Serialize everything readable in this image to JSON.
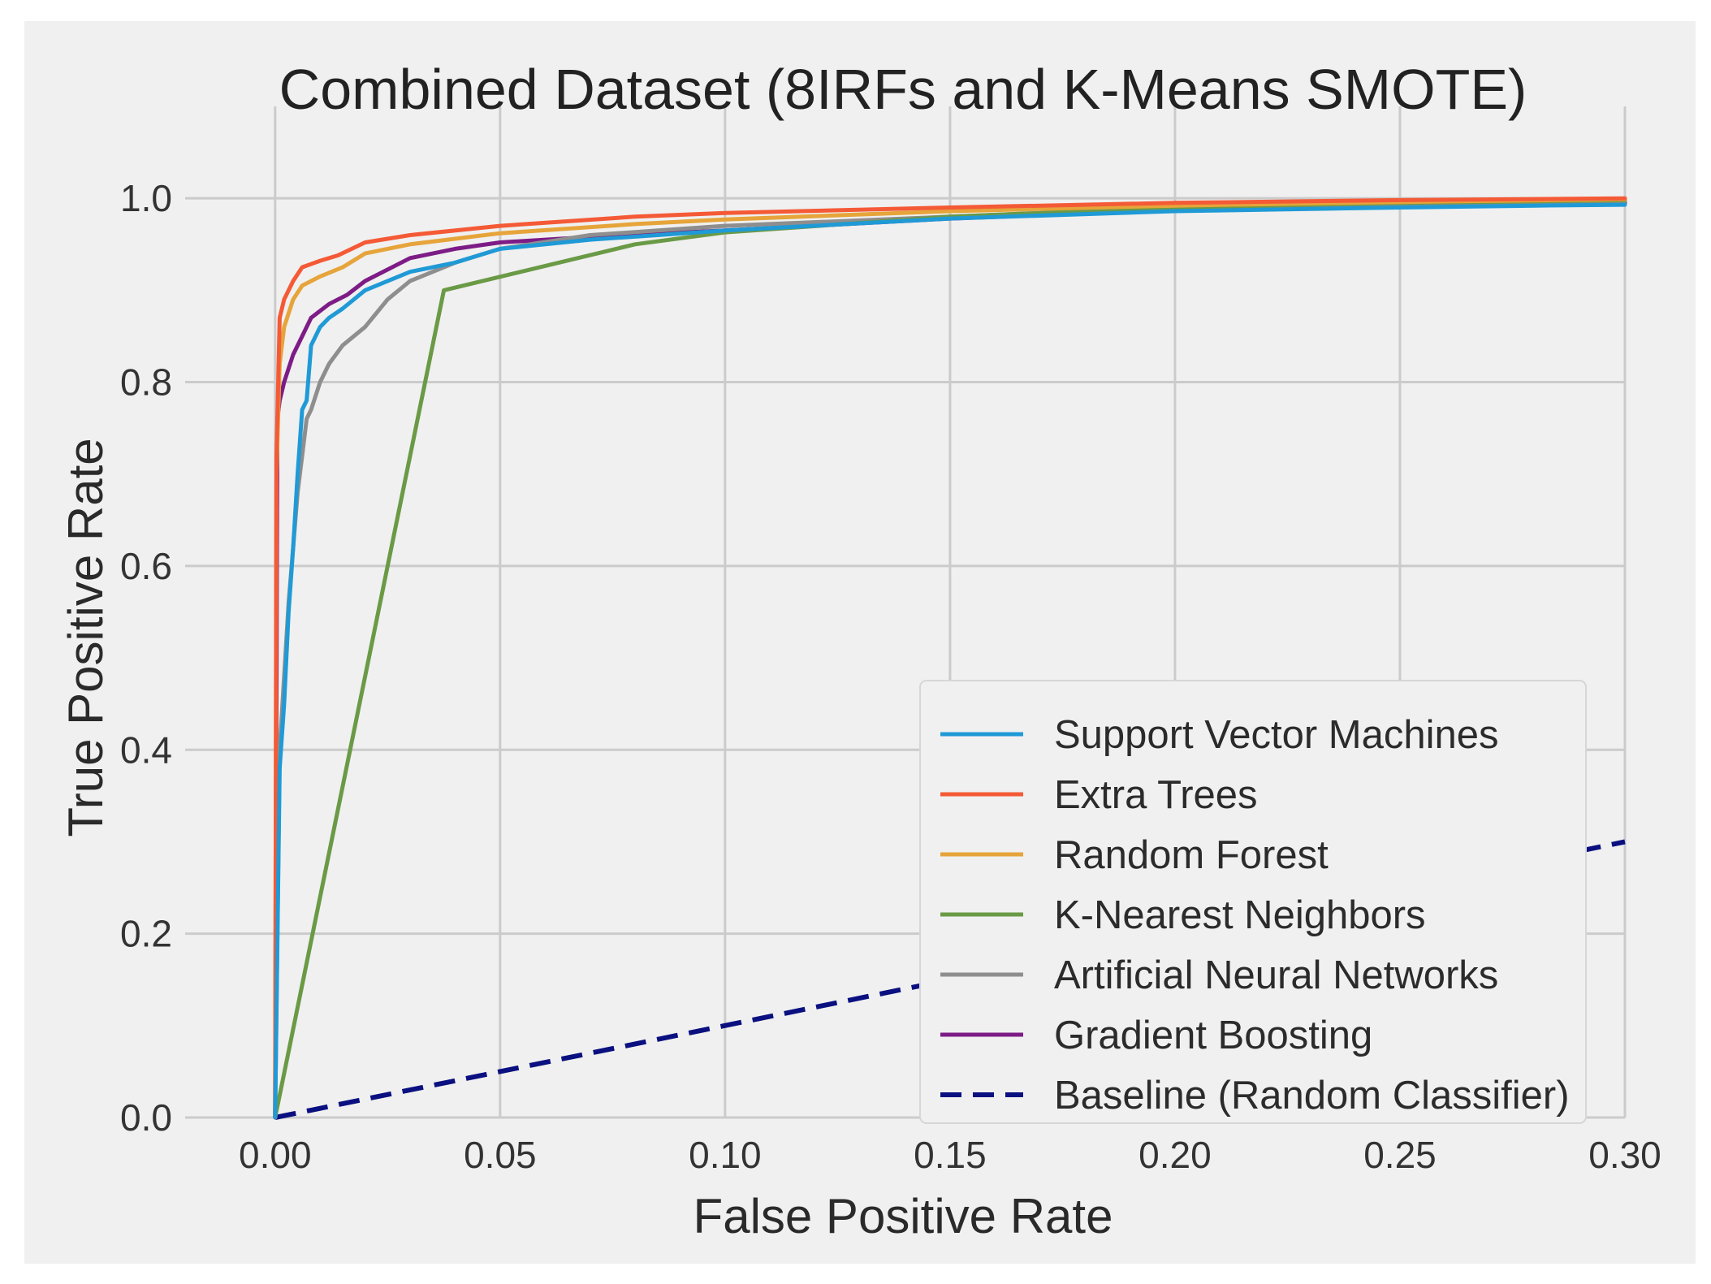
{
  "chart_data": {
    "type": "line",
    "title": "Combined Dataset (8IRFs and K-Means SMOTE)",
    "xlabel": "False Positive Rate",
    "ylabel": "True Positive Rate",
    "xlim": [
      -0.02,
      0.3
    ],
    "ylim": [
      0.0,
      1.1
    ],
    "grid": true,
    "legend_position": "lower-right",
    "x_ticks": [
      0.0,
      0.05,
      0.1,
      0.15,
      0.2,
      0.25,
      0.3
    ],
    "x_tick_labels": [
      "0.00",
      "0.05",
      "0.10",
      "0.15",
      "0.20",
      "0.25",
      "0.30"
    ],
    "y_ticks": [
      0.0,
      0.2,
      0.4,
      0.6,
      0.8,
      1.0
    ],
    "y_tick_labels": [
      "0.0",
      "0.2",
      "0.4",
      "0.6",
      "0.8",
      "1.0"
    ],
    "series": [
      {
        "name": "Support Vector Machines",
        "color": "#1f9ad6",
        "dash": false,
        "x": [
          0.0,
          0.001,
          0.002,
          0.003,
          0.004,
          0.005,
          0.006,
          0.007,
          0.008,
          0.01,
          0.012,
          0.015,
          0.02,
          0.03,
          0.04,
          0.05,
          0.07,
          0.1,
          0.15,
          0.2,
          0.25,
          0.28,
          0.3
        ],
        "y": [
          0.0,
          0.38,
          0.45,
          0.55,
          0.62,
          0.7,
          0.77,
          0.78,
          0.84,
          0.86,
          0.87,
          0.88,
          0.9,
          0.92,
          0.93,
          0.945,
          0.955,
          0.965,
          0.978,
          0.986,
          0.99,
          0.992,
          0.993
        ]
      },
      {
        "name": "Extra Trees",
        "color": "#f45a36",
        "dash": false,
        "x": [
          0.0,
          0.0003,
          0.001,
          0.002,
          0.004,
          0.006,
          0.01,
          0.014,
          0.02,
          0.03,
          0.05,
          0.08,
          0.1,
          0.15,
          0.2,
          0.25,
          0.3
        ],
        "y": [
          0.0,
          0.72,
          0.87,
          0.89,
          0.91,
          0.925,
          0.932,
          0.938,
          0.952,
          0.96,
          0.97,
          0.98,
          0.984,
          0.99,
          0.995,
          0.998,
          1.0
        ]
      },
      {
        "name": "Random Forest",
        "color": "#e6a43a",
        "dash": false,
        "x": [
          0.0,
          0.0003,
          0.001,
          0.002,
          0.004,
          0.006,
          0.01,
          0.015,
          0.02,
          0.03,
          0.05,
          0.08,
          0.1,
          0.15,
          0.2,
          0.25,
          0.3
        ],
        "y": [
          0.0,
          0.7,
          0.82,
          0.86,
          0.89,
          0.905,
          0.915,
          0.925,
          0.94,
          0.95,
          0.962,
          0.972,
          0.977,
          0.986,
          0.992,
          0.996,
          0.999
        ]
      },
      {
        "name": "K-Nearest Neighbors",
        "color": "#6a9a46",
        "dash": false,
        "x": [
          0.0,
          0.0375,
          0.08,
          0.1,
          0.15,
          0.2,
          0.25,
          0.3
        ],
        "y": [
          0.0,
          0.9,
          0.95,
          0.963,
          0.98,
          0.99,
          0.995,
          0.998
        ]
      },
      {
        "name": "Artificial Neural Networks",
        "color": "#8e8e8e",
        "dash": false,
        "x": [
          0.0,
          0.001,
          0.002,
          0.003,
          0.004,
          0.005,
          0.006,
          0.007,
          0.008,
          0.01,
          0.012,
          0.015,
          0.02,
          0.025,
          0.03,
          0.04,
          0.05,
          0.07,
          0.1,
          0.15,
          0.2,
          0.25,
          0.3
        ],
        "y": [
          0.0,
          0.4,
          0.48,
          0.56,
          0.62,
          0.68,
          0.72,
          0.76,
          0.77,
          0.8,
          0.82,
          0.84,
          0.86,
          0.89,
          0.91,
          0.93,
          0.945,
          0.96,
          0.97,
          0.98,
          0.99,
          0.994,
          0.997
        ]
      },
      {
        "name": "Gradient Boosting",
        "color": "#7d1c86",
        "dash": false,
        "x": [
          0.0,
          0.0005,
          0.001,
          0.002,
          0.004,
          0.006,
          0.008,
          0.012,
          0.016,
          0.02,
          0.03,
          0.04,
          0.05,
          0.07,
          0.1,
          0.15,
          0.2,
          0.25,
          0.3
        ],
        "y": [
          0.0,
          0.76,
          0.78,
          0.8,
          0.83,
          0.85,
          0.87,
          0.885,
          0.895,
          0.91,
          0.935,
          0.945,
          0.952,
          0.958,
          0.965,
          0.978,
          0.987,
          0.992,
          0.995
        ]
      },
      {
        "name": "Baseline (Random Classifier)",
        "color": "#0a1080",
        "dash": true,
        "x": [
          0.0,
          0.3
        ],
        "y": [
          0.0,
          0.3
        ]
      }
    ]
  }
}
